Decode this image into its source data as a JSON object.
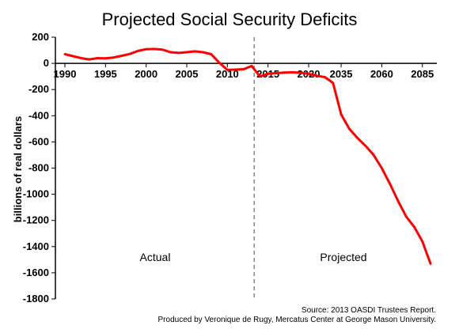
{
  "chart_data": {
    "type": "line",
    "title": "Projected Social Security Deficits",
    "ylabel": "billions of real dollars",
    "xlabel": "",
    "ylim": [
      -1800,
      200
    ],
    "y_ticks": [
      "200",
      "0",
      "-200",
      "-400",
      "-600",
      "-800",
      "-1000",
      "-1200",
      "-1400",
      "-1600",
      "-1800"
    ],
    "x_tick_labels": [
      "1990",
      "1995",
      "2000",
      "2005",
      "2010",
      "2015",
      "2020",
      "2035",
      "2060",
      "2085"
    ],
    "x_axis_note": "annual 1990-2021, then every 5 years 2025-2085, 2090",
    "grid": false,
    "divider": "2013",
    "annotations": [
      "Actual",
      "Projected"
    ],
    "color": "#ff0000",
    "series": [
      {
        "points": [
          [
            "1990",
            70
          ],
          [
            "1991",
            55
          ],
          [
            "1992",
            40
          ],
          [
            "1993",
            30
          ],
          [
            "1994",
            40
          ],
          [
            "1995",
            38
          ],
          [
            "1996",
            45
          ],
          [
            "1997",
            58
          ],
          [
            "1998",
            72
          ],
          [
            "1999",
            95
          ],
          [
            "2000",
            108
          ],
          [
            "2001",
            110
          ],
          [
            "2002",
            105
          ],
          [
            "2003",
            85
          ],
          [
            "2004",
            80
          ],
          [
            "2005",
            85
          ],
          [
            "2006",
            92
          ],
          [
            "2007",
            85
          ],
          [
            "2008",
            70
          ],
          [
            "2009",
            5
          ],
          [
            "2010",
            -50
          ],
          [
            "2011",
            -48
          ],
          [
            "2012",
            -45
          ],
          [
            "2013",
            -20
          ],
          [
            "2014",
            -100
          ],
          [
            "2015",
            -80
          ],
          [
            "2016",
            -75
          ],
          [
            "2017",
            -70
          ],
          [
            "2018",
            -68
          ],
          [
            "2019",
            -72
          ],
          [
            "2020",
            -80
          ],
          [
            "2021",
            -95
          ],
          [
            "2025",
            -105
          ],
          [
            "2030",
            -150
          ],
          [
            "2035",
            -390
          ],
          [
            "2040",
            -500
          ],
          [
            "2045",
            -570
          ],
          [
            "2050",
            -630
          ],
          [
            "2055",
            -700
          ],
          [
            "2060",
            -800
          ],
          [
            "2065",
            -920
          ],
          [
            "2070",
            -1050
          ],
          [
            "2075",
            -1170
          ],
          [
            "2080",
            -1250
          ],
          [
            "2085",
            -1360
          ],
          [
            "2090",
            -1530
          ]
        ]
      }
    ]
  },
  "source_lines": [
    "Source: 2013 OASDI Trustees Report.",
    "Produced by Veronique de Rugy, Mercatus Center at George Mason University."
  ]
}
